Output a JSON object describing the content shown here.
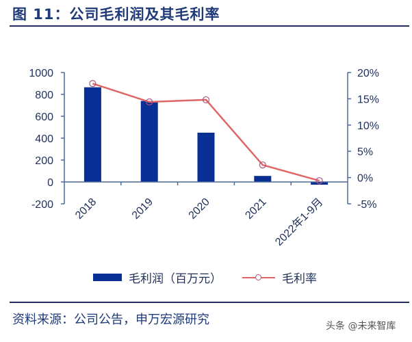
{
  "header": {
    "title": "图 11：公司毛利润及其毛利率"
  },
  "chart_data": {
    "type": "bar+line",
    "title": "图 11：公司毛利润及其毛利率",
    "categories": [
      "2018",
      "2019",
      "2020",
      "2021",
      "2022年1-9月"
    ],
    "series": [
      {
        "name": "毛利润（百万元）",
        "type": "bar",
        "axis": "left",
        "color": "#0a2f94",
        "values": [
          865,
          740,
          450,
          55,
          -25
        ]
      },
      {
        "name": "毛利率",
        "type": "line",
        "axis": "right",
        "color": "#e06666",
        "unit": "%",
        "values": [
          17.9,
          14.4,
          14.8,
          2.4,
          -0.6
        ]
      }
    ],
    "left_axis": {
      "ylim": [
        -200,
        1000
      ],
      "ticks": [
        "1000",
        "800",
        "600",
        "400",
        "200",
        "0",
        "-200"
      ]
    },
    "right_axis": {
      "ylim": [
        -5,
        20
      ],
      "ticks": [
        "20%",
        "15%",
        "10%",
        "5%",
        "0%",
        "-5%"
      ]
    },
    "xlabel": "",
    "ylabel": "",
    "grid": false,
    "legend_position": "bottom"
  },
  "legend": {
    "bar_label": "毛利润（百万元）",
    "line_label": "毛利率"
  },
  "footer": {
    "source": "资料来源：公司公告，申万宏源研究",
    "watermark": "头条 @未来智库"
  }
}
